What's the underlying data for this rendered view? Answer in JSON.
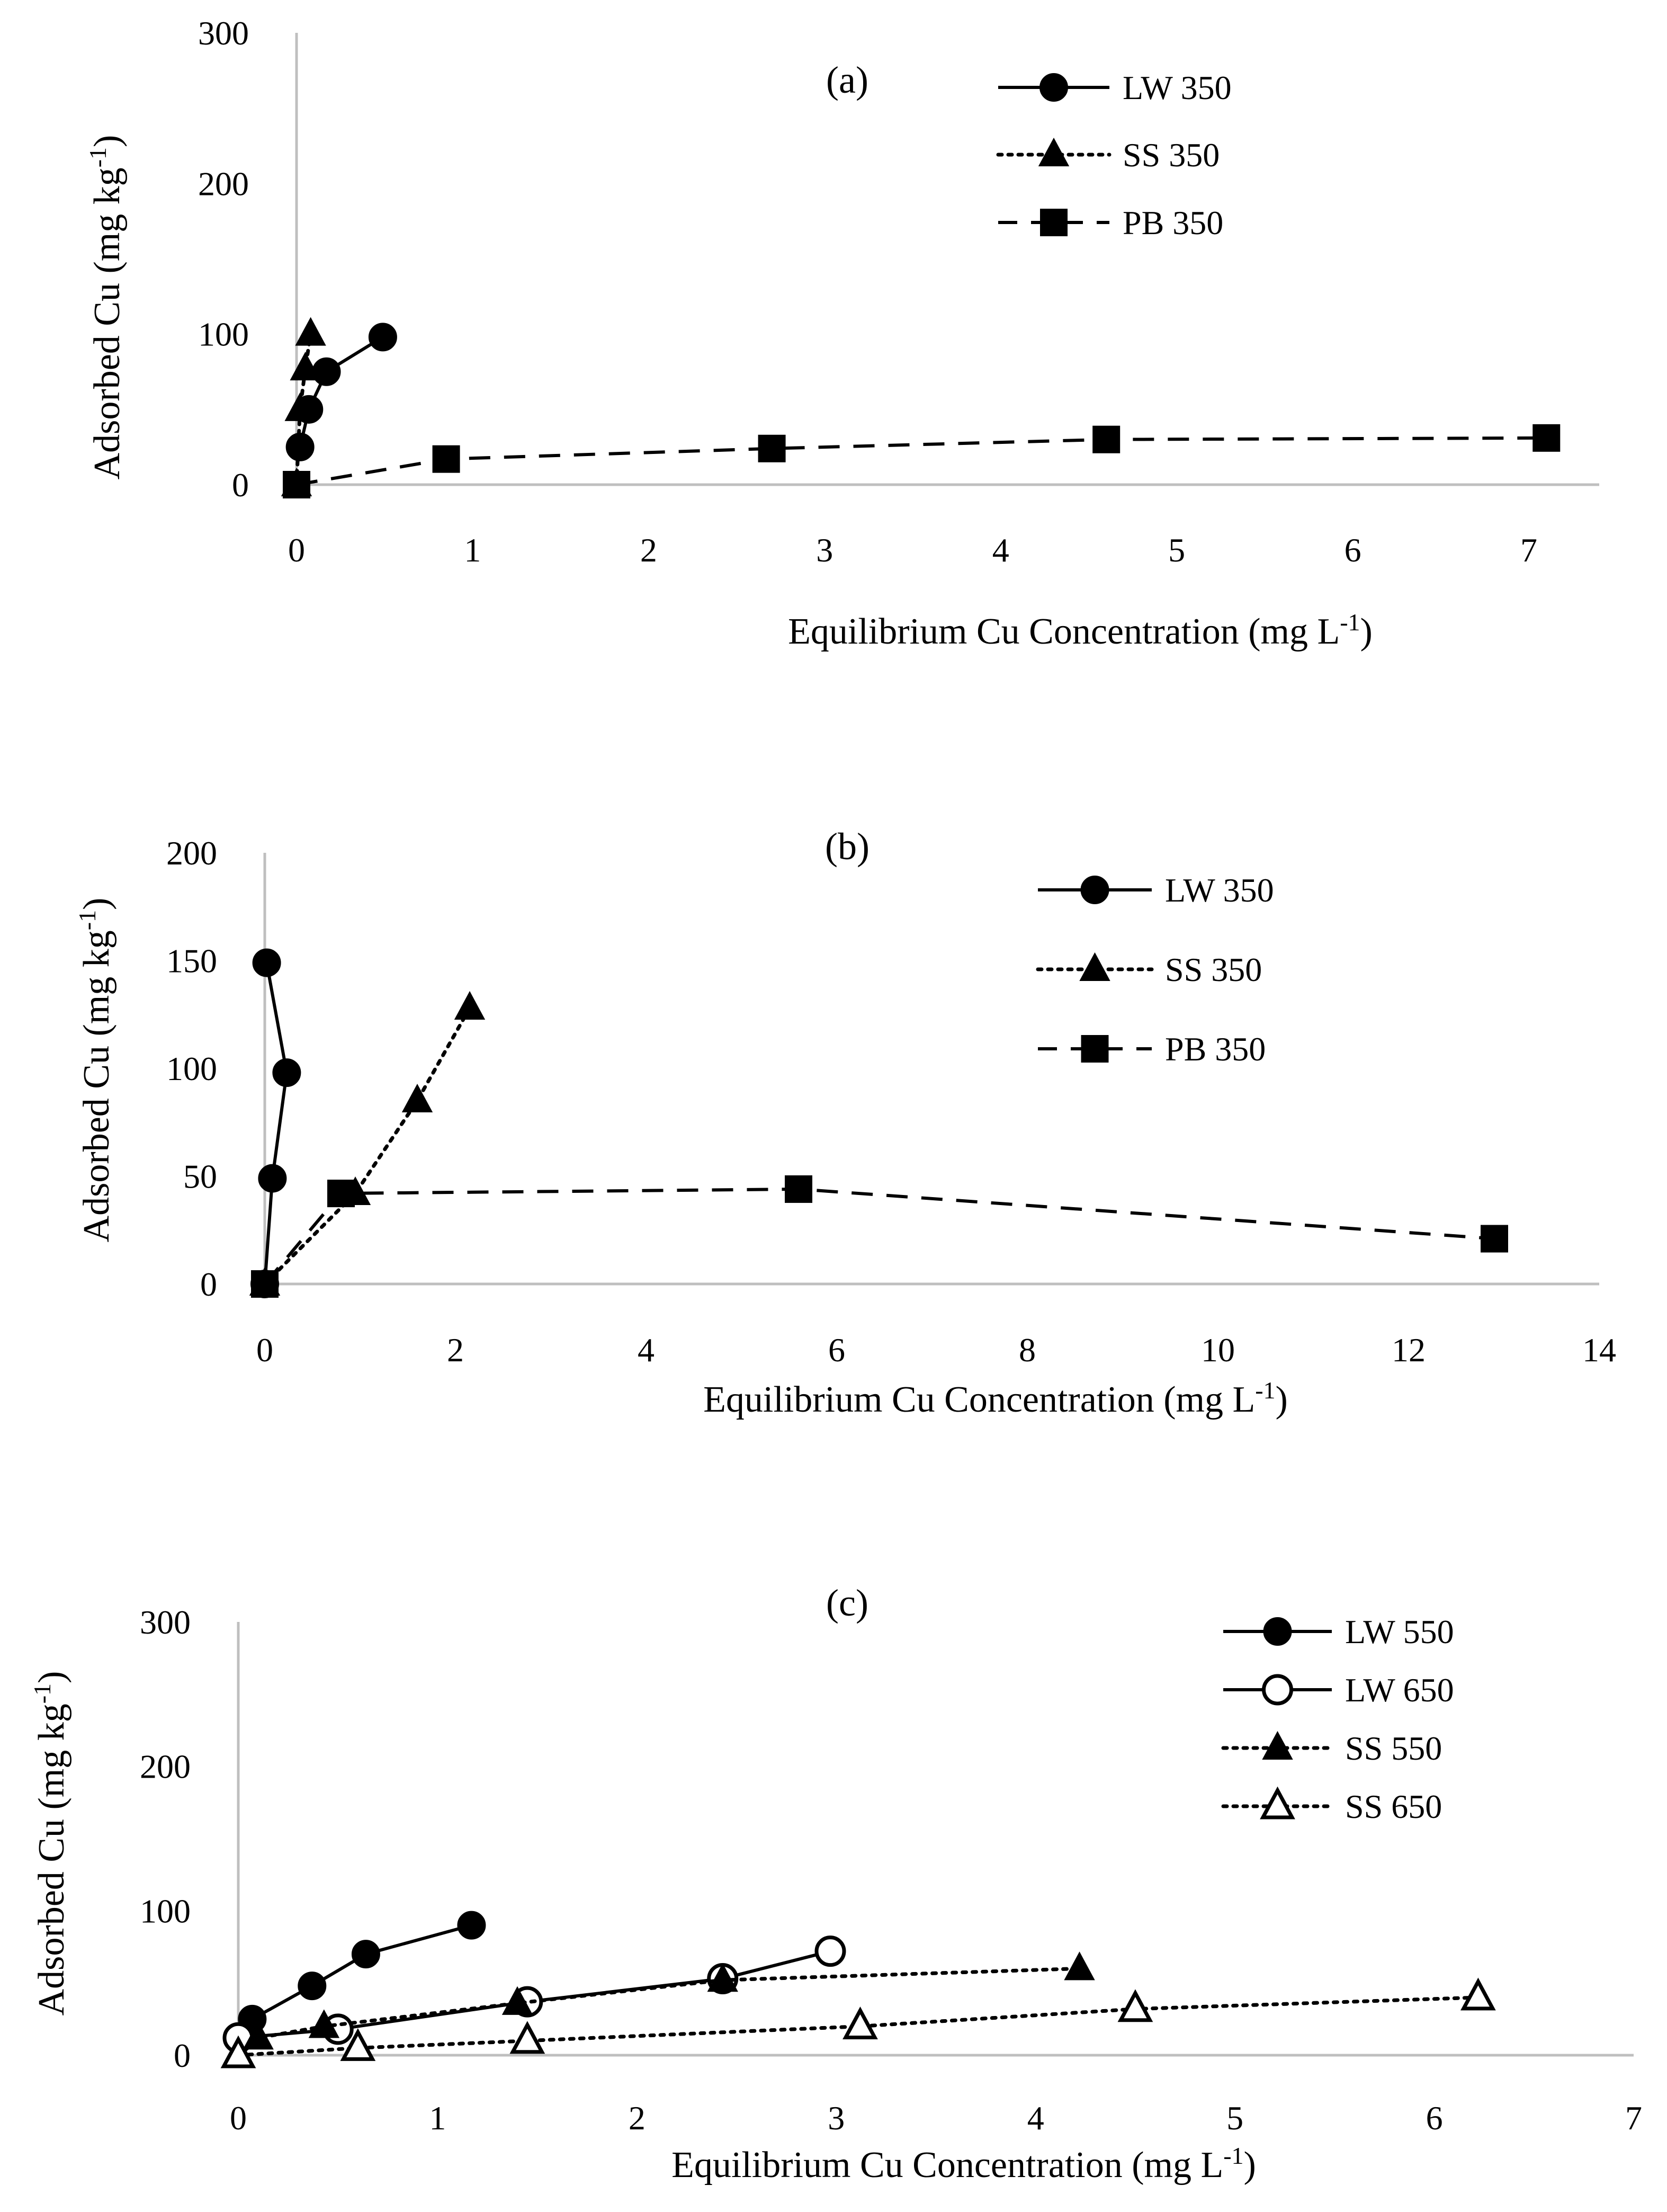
{
  "chart_data": [
    {
      "type": "scatter",
      "panel_label": "(a)",
      "xlabel": "Equilibrium Cu Concentration (mg L",
      "xlabel_sup": "-1",
      "xlabel_end": ")",
      "ylabel": "Adsorbed Cu (mg  kg",
      "ylabel_sup": "-1",
      "ylabel_end": ")",
      "xlim": [
        0,
        7.4
      ],
      "ylim": [
        0,
        300
      ],
      "xticks": [
        0,
        1,
        2,
        3,
        4,
        5,
        6,
        7
      ],
      "yticks": [
        0,
        100,
        200,
        300
      ],
      "legend_position": "top-right",
      "series": [
        {
          "name": "LW 350",
          "marker": "circle",
          "filled": true,
          "line": "solid",
          "x": [
            0.02,
            0.07,
            0.17,
            0.49
          ],
          "y": [
            25,
            50,
            75,
            98
          ]
        },
        {
          "name": "SS 350",
          "marker": "triangle",
          "filled": true,
          "line": "dotted",
          "x": [
            0.0,
            0.02,
            0.05,
            0.08
          ],
          "y": [
            0,
            50,
            77,
            100
          ]
        },
        {
          "name": "PB 350",
          "marker": "square",
          "filled": true,
          "line": "dashed",
          "x": [
            0.0,
            0.85,
            2.7,
            4.6,
            7.1
          ],
          "y": [
            0,
            17,
            24,
            30,
            31
          ]
        }
      ]
    },
    {
      "type": "scatter",
      "panel_label": "(b)",
      "xlabel": "Equilibrium Cu Concentration (mg L",
      "xlabel_sup": "-1",
      "xlabel_end": ")",
      "ylabel": "Adsorbed Cu (mg kg",
      "ylabel_sup": "-1",
      "ylabel_end": ")",
      "xlim": [
        0,
        14
      ],
      "ylim": [
        0,
        200
      ],
      "xticks": [
        0,
        2,
        4,
        6,
        8,
        10,
        12,
        14
      ],
      "yticks": [
        0,
        50,
        100,
        150,
        200
      ],
      "legend_position": "top-right",
      "series": [
        {
          "name": "LW 350",
          "marker": "circle",
          "filled": true,
          "line": "solid",
          "x": [
            0.0,
            0.08,
            0.23,
            0.02
          ],
          "y": [
            0,
            49,
            98,
            149
          ]
        },
        {
          "name": "SS 350",
          "marker": "triangle",
          "filled": true,
          "line": "dotted",
          "x": [
            0.0,
            0.95,
            1.6,
            2.15
          ],
          "y": [
            0,
            42,
            85,
            128
          ]
        },
        {
          "name": "PB 350",
          "marker": "square",
          "filled": true,
          "line": "dashed",
          "x": [
            0.0,
            0.8,
            5.6,
            12.9
          ],
          "y": [
            0,
            42,
            44,
            21
          ]
        }
      ]
    },
    {
      "type": "scatter",
      "panel_label": "(c)",
      "xlabel": "Equilibrium Cu Concentration (mg L",
      "xlabel_sup": "-1",
      "xlabel_end": ")",
      "ylabel": "Adsorbed Cu (mg kg",
      "ylabel_sup": "-1",
      "ylabel_end": ")",
      "xlim": [
        0,
        7
      ],
      "ylim": [
        0,
        300
      ],
      "xticks": [
        0,
        1,
        2,
        3,
        4,
        5,
        6,
        7
      ],
      "yticks": [
        0,
        100,
        200,
        300
      ],
      "legend_position": "top-right",
      "series": [
        {
          "name": "LW 550",
          "marker": "circle",
          "filled": true,
          "line": "solid",
          "x": [
            0.0,
            0.07,
            0.37,
            0.64,
            1.17
          ],
          "y": [
            12,
            25,
            48,
            70,
            90
          ]
        },
        {
          "name": "LW 650",
          "marker": "circle",
          "filled": false,
          "line": "solid",
          "x": [
            0.0,
            0.5,
            1.45,
            2.43,
            2.97
          ],
          "y": [
            12,
            18,
            37,
            53,
            72
          ]
        },
        {
          "name": "SS 550",
          "marker": "triangle",
          "filled": true,
          "line": "dotted",
          "x": [
            0.0,
            0.1,
            0.43,
            1.4,
            2.43,
            4.22
          ],
          "y": [
            0,
            12,
            20,
            36,
            52,
            60
          ]
        },
        {
          "name": "SS 650",
          "marker": "triangle",
          "filled": false,
          "line": "dotted",
          "x": [
            0.0,
            0.6,
            1.45,
            3.12,
            4.5,
            6.22
          ],
          "y": [
            0,
            5,
            10,
            20,
            32,
            40
          ]
        }
      ]
    }
  ]
}
